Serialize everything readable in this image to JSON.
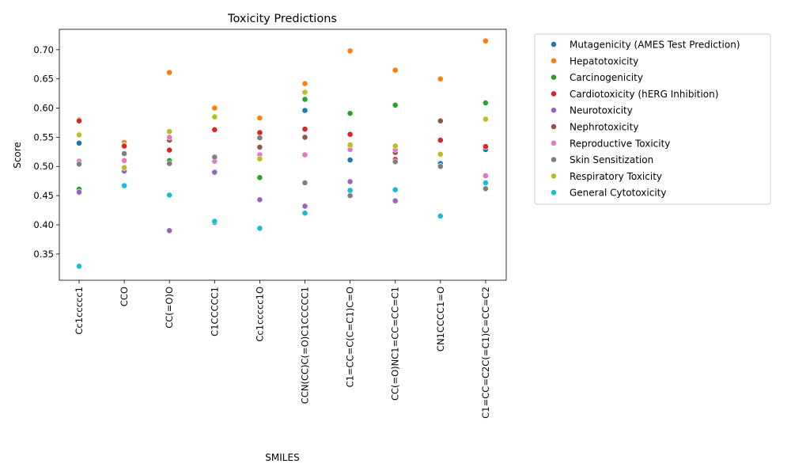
{
  "chart_data": {
    "type": "scatter",
    "title": "Toxicity Predictions",
    "xlabel": "SMILES",
    "ylabel": "Score",
    "categories": [
      "Cc1ccccc1",
      "CCO",
      "CC(=O)O",
      "C1CCCCC1",
      "Cc1ccccc1O",
      "CCN(CC)C(=O)C1CCCCC1",
      "C1=CC=C(C=C1)C=O",
      "CC(=O)NC1=CC=CC=C1",
      "CN1CCCC1=O",
      "C1=CC=C2C(=C1)C=CC=C2"
    ],
    "ylim": [
      0.305,
      0.735
    ],
    "yticks": [
      0.35,
      0.4,
      0.45,
      0.5,
      0.55,
      0.6,
      0.65,
      0.7
    ],
    "ytick_labels": [
      "0.35",
      "0.40",
      "0.45",
      "0.50",
      "0.55",
      "0.60",
      "0.65",
      "0.70"
    ],
    "grid": false,
    "legend_position": "outside-top-right",
    "series": [
      {
        "name": "Mutagenicity (AMES Test Prediction)",
        "color": "#1f77b4",
        "values": [
          0.54,
          0.495,
          0.51,
          0.404,
          0.395,
          0.596,
          0.511,
          0.508,
          0.505,
          0.529
        ]
      },
      {
        "name": "Hepatotoxicity",
        "color": "#ff7f0e",
        "values": [
          0.58,
          0.541,
          0.661,
          0.6,
          0.583,
          0.642,
          0.698,
          0.665,
          0.65,
          0.715
        ]
      },
      {
        "name": "Carcinogenicity",
        "color": "#2ca02c",
        "values": [
          0.461,
          0.536,
          0.51,
          0.563,
          0.481,
          0.615,
          0.591,
          0.605,
          0.52,
          0.609
        ]
      },
      {
        "name": "Cardiotoxicity (hERG Inhibition)",
        "color": "#d62728",
        "values": [
          0.578,
          0.535,
          0.528,
          0.563,
          0.558,
          0.564,
          0.555,
          0.512,
          0.545,
          0.534
        ]
      },
      {
        "name": "Neurotoxicity",
        "color": "#9467bd",
        "values": [
          0.456,
          0.492,
          0.39,
          0.49,
          0.443,
          0.432,
          0.474,
          0.441,
          0.5,
          0.462
        ]
      },
      {
        "name": "Nephrotoxicity",
        "color": "#8c564b",
        "values": [
          0.555,
          0.522,
          0.545,
          0.516,
          0.533,
          0.55,
          0.534,
          0.524,
          0.578,
          0.462
        ]
      },
      {
        "name": "Reproductive Toxicity",
        "color": "#e377c2",
        "values": [
          0.509,
          0.51,
          0.55,
          0.509,
          0.52,
          0.52,
          0.529,
          0.529,
          0.52,
          0.484
        ]
      },
      {
        "name": "Skin Sensitization",
        "color": "#7f7f7f",
        "values": [
          0.504,
          0.522,
          0.505,
          0.516,
          0.549,
          0.472,
          0.45,
          0.508,
          0.5,
          0.462
        ]
      },
      {
        "name": "Respiratory Toxicity",
        "color": "#bcbd22",
        "values": [
          0.554,
          0.498,
          0.56,
          0.585,
          0.513,
          0.627,
          0.537,
          0.535,
          0.521,
          0.581
        ]
      },
      {
        "name": "General Cytotoxicity",
        "color": "#17becf",
        "values": [
          0.329,
          0.467,
          0.451,
          0.406,
          0.394,
          0.42,
          0.459,
          0.46,
          0.415,
          0.472
        ]
      }
    ]
  }
}
